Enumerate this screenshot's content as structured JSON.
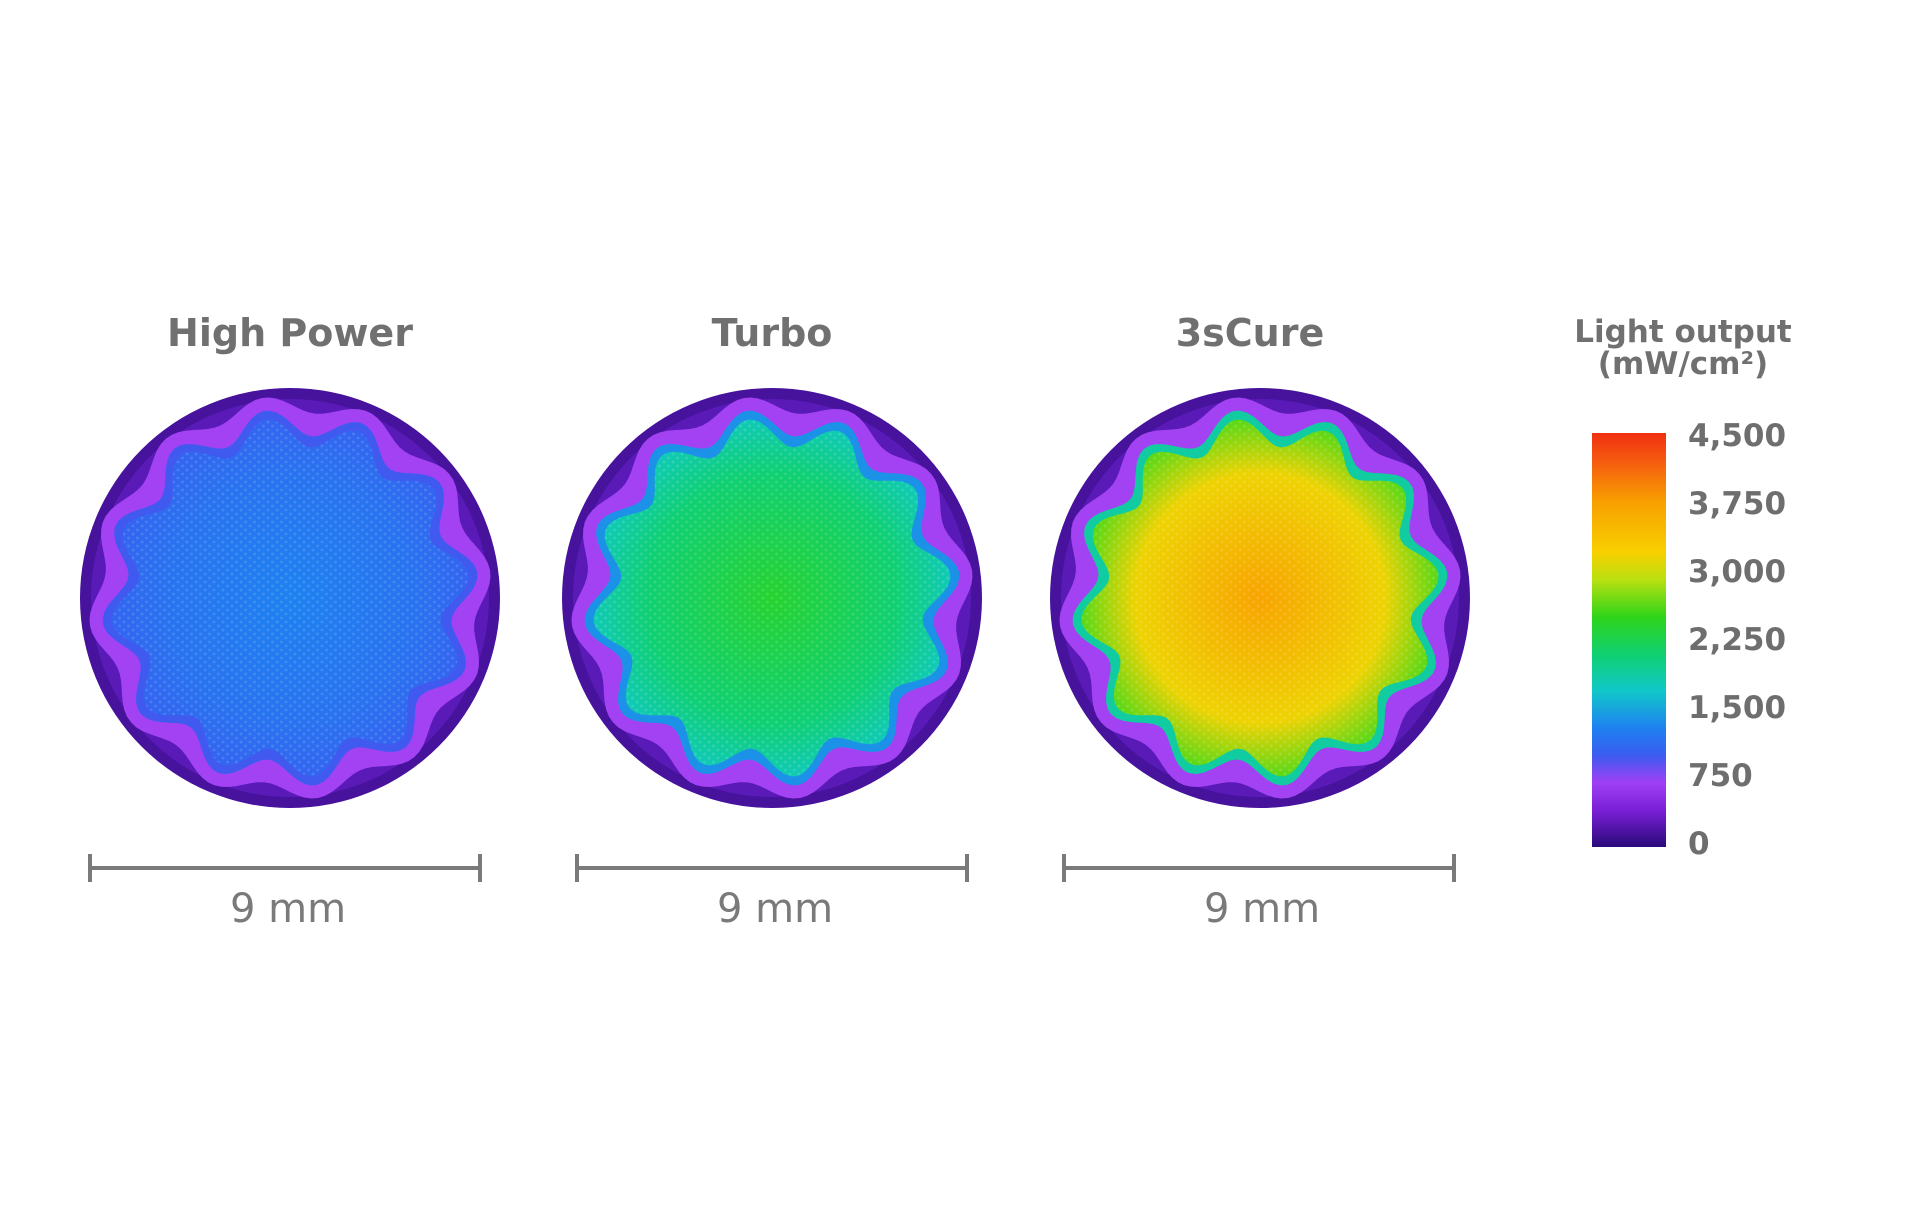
{
  "chart_data": {
    "type": "heatmap",
    "title": "",
    "panels": [
      {
        "name": "High Power",
        "scale_label": "9 mm",
        "center_value": 1300,
        "edge_value": 650
      },
      {
        "name": "Turbo",
        "scale_label": "9 mm",
        "center_value": 2400,
        "edge_value": 650
      },
      {
        "name": "3sCure",
        "scale_label": "9 mm",
        "center_value": 3700,
        "edge_value": 650
      }
    ],
    "colorbar": {
      "title_line1": "Light output",
      "title_line2": "(mW/cm²)",
      "ticks": [
        "4,500",
        "3,750",
        "3,000",
        "2,250",
        "1,500",
        "750",
        "0"
      ],
      "range": [
        0,
        4500
      ],
      "stops": [
        {
          "value": 0,
          "color": "#2a0a7a"
        },
        {
          "value": 400,
          "color": "#7a1fd6"
        },
        {
          "value": 700,
          "color": "#a040f5"
        },
        {
          "value": 1000,
          "color": "#3a5cf0"
        },
        {
          "value": 1300,
          "color": "#1e82f0"
        },
        {
          "value": 1700,
          "color": "#10c8c8"
        },
        {
          "value": 2100,
          "color": "#10d070"
        },
        {
          "value": 2500,
          "color": "#2fd41a"
        },
        {
          "value": 2900,
          "color": "#b8e010"
        },
        {
          "value": 3200,
          "color": "#f8d000"
        },
        {
          "value": 3750,
          "color": "#f8a000"
        },
        {
          "value": 4200,
          "color": "#f55a10"
        },
        {
          "value": 4500,
          "color": "#f03010"
        }
      ]
    }
  }
}
